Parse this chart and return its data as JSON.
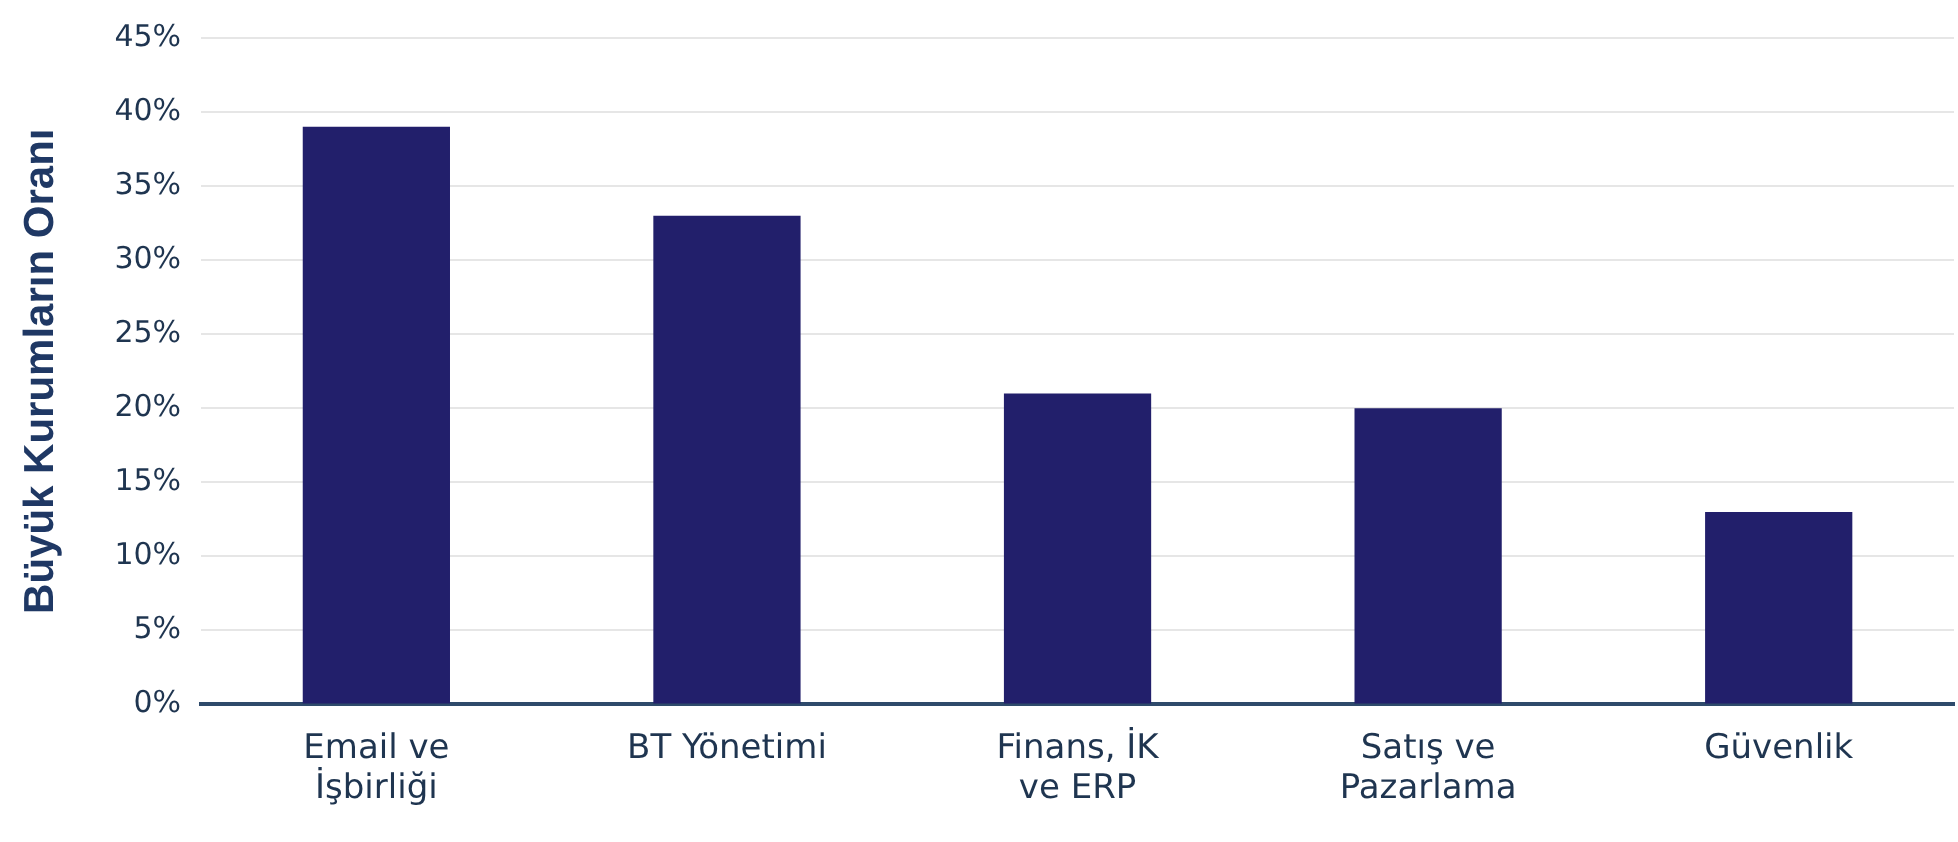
{
  "chart_data": {
    "type": "bar",
    "ylabel": "Büyük Kurumların Oranı",
    "categories": [
      "Email ve\nİşbirliği",
      "BT Yönetimi",
      "Finans, İK\nve ERP",
      "Satış ve\nPazarlama",
      "Güvenlik"
    ],
    "values": [
      39,
      33,
      21,
      20,
      13
    ],
    "color": "#221f6b",
    "ylim": [
      0,
      45
    ],
    "yticks": [
      {
        "value": 0,
        "label": "0%"
      },
      {
        "value": 5,
        "label": "5%"
      },
      {
        "value": 10,
        "label": "10%"
      },
      {
        "value": 15,
        "label": "15%"
      },
      {
        "value": 20,
        "label": "20%"
      },
      {
        "value": 25,
        "label": "25%"
      },
      {
        "value": 30,
        "label": "30%"
      },
      {
        "value": 35,
        "label": "35%"
      },
      {
        "value": 40,
        "label": "40%"
      },
      {
        "value": 45,
        "label": "45%"
      }
    ],
    "grid": "y",
    "legend": false
  }
}
